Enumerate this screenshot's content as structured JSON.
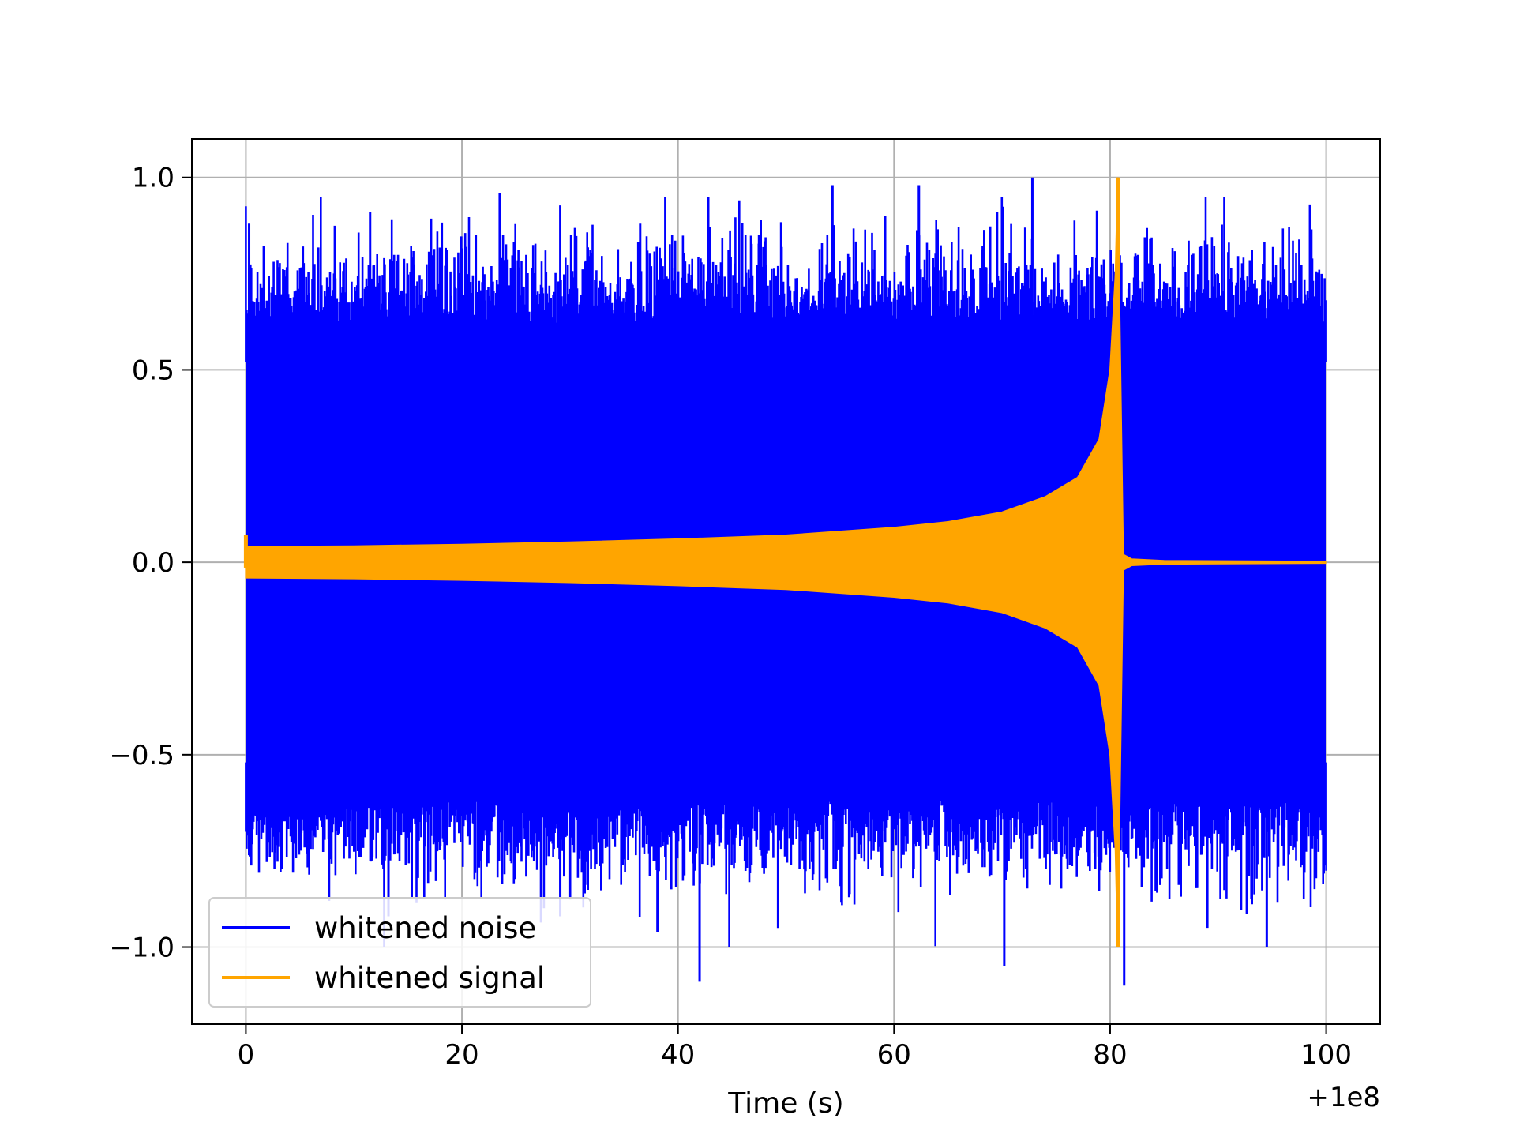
{
  "chart_data": {
    "type": "line",
    "title": "",
    "xlabel": "Time (s)",
    "ylabel": "",
    "x_offset_label": "+1e8",
    "xlim": [
      -5,
      105
    ],
    "ylim": [
      -1.2,
      1.1
    ],
    "xticks": [
      0,
      20,
      40,
      60,
      80,
      100
    ],
    "xtick_labels": [
      "0",
      "20",
      "40",
      "60",
      "80",
      "100"
    ],
    "yticks": [
      -1.0,
      -0.5,
      0.0,
      0.5,
      1.0
    ],
    "ytick_labels": [
      "−1.0",
      "−0.5",
      "0.0",
      "0.5",
      "1.0"
    ],
    "grid": true,
    "legend_position": "lower-left",
    "series": [
      {
        "name": "whitened noise",
        "color": "#0000ff",
        "style": "dense-noise",
        "x_range": [
          0,
          100
        ],
        "band": [
          -0.62,
          0.62
        ],
        "peaks": [
          {
            "x": 0.3,
            "y": 0.88
          },
          {
            "x": 11.5,
            "y": 0.91
          },
          {
            "x": 23.5,
            "y": 0.96
          },
          {
            "x": 36.5,
            "y": 0.88
          },
          {
            "x": 47.5,
            "y": 0.85
          },
          {
            "x": 54.3,
            "y": 0.98
          },
          {
            "x": 62.3,
            "y": 0.98
          },
          {
            "x": 72.8,
            "y": 1.0
          },
          {
            "x": 98.5,
            "y": 0.93
          },
          {
            "x": 7.7,
            "y": -0.88
          },
          {
            "x": 13.2,
            "y": -0.92
          },
          {
            "x": 29.1,
            "y": -0.92
          },
          {
            "x": 38.1,
            "y": -0.96
          },
          {
            "x": 42.0,
            "y": -1.09
          },
          {
            "x": 70.2,
            "y": -1.05
          },
          {
            "x": 81.3,
            "y": -1.1
          },
          {
            "x": 94.5,
            "y": -1.0
          },
          {
            "x": 89.0,
            "y": -0.95
          }
        ]
      },
      {
        "name": "whitened signal",
        "color": "#ffa500",
        "style": "chirp-envelope",
        "x_range": [
          0,
          100
        ],
        "x": [
          0,
          10,
          20,
          30,
          40,
          50,
          60,
          65,
          70,
          74,
          77,
          79,
          80,
          80.5,
          80.7,
          80.9,
          81.2,
          82,
          85,
          100
        ],
        "envelope": [
          0.04,
          0.042,
          0.046,
          0.052,
          0.06,
          0.07,
          0.09,
          0.105,
          0.13,
          0.17,
          0.22,
          0.32,
          0.5,
          0.75,
          1.0,
          0.6,
          0.02,
          0.008,
          0.004,
          0.002
        ],
        "min": -1.0,
        "max": 1.0,
        "initial_spike": 0.07
      }
    ]
  }
}
